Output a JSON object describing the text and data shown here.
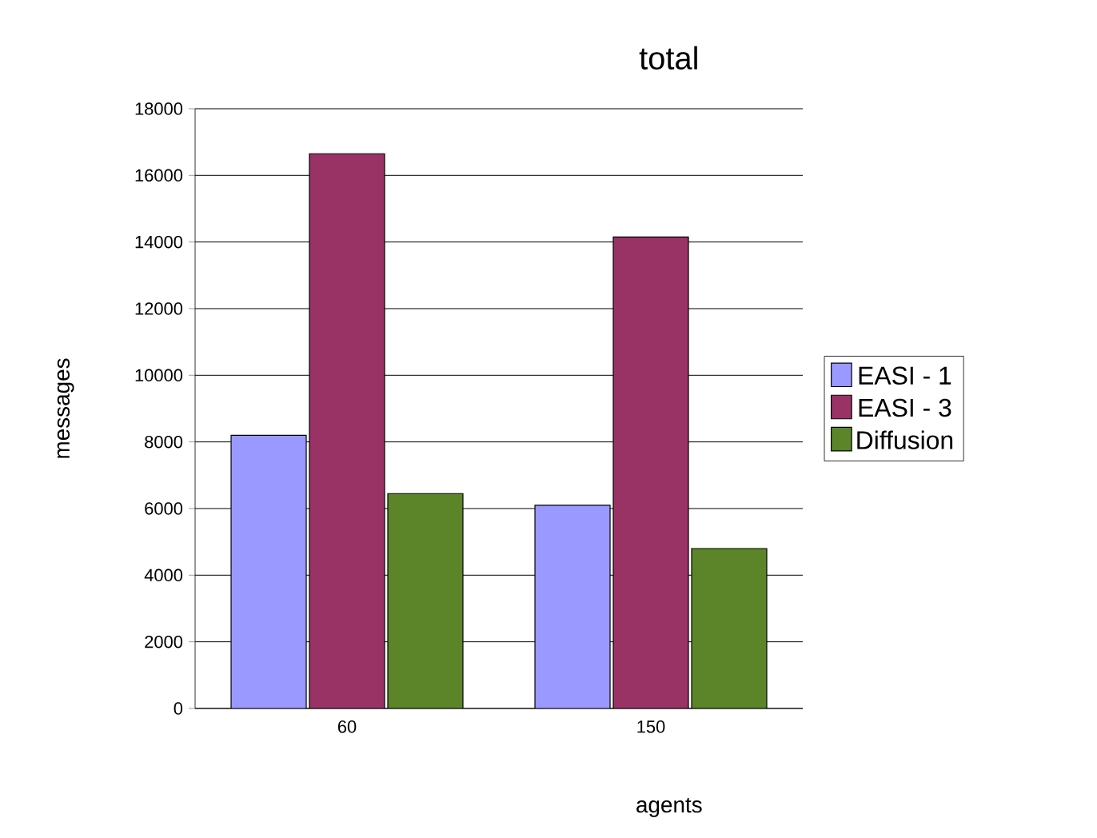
{
  "chart_data": {
    "type": "bar",
    "title": "total",
    "xlabel": "agents",
    "ylabel": "messages",
    "categories": [
      "60",
      "150"
    ],
    "series": [
      {
        "name": "EASI - 1",
        "color": "#9999ff",
        "values": [
          8200,
          6100
        ]
      },
      {
        "name": "EASI - 3",
        "color": "#993366",
        "values": [
          16650,
          14150
        ]
      },
      {
        "name": "Diffusion",
        "color": "#5b8528",
        "values": [
          6450,
          4800
        ]
      }
    ],
    "ylim": [
      0,
      18000
    ],
    "yticks": [
      0,
      2000,
      4000,
      6000,
      8000,
      10000,
      12000,
      14000,
      16000,
      18000
    ],
    "grid": "y",
    "legend": "right"
  }
}
